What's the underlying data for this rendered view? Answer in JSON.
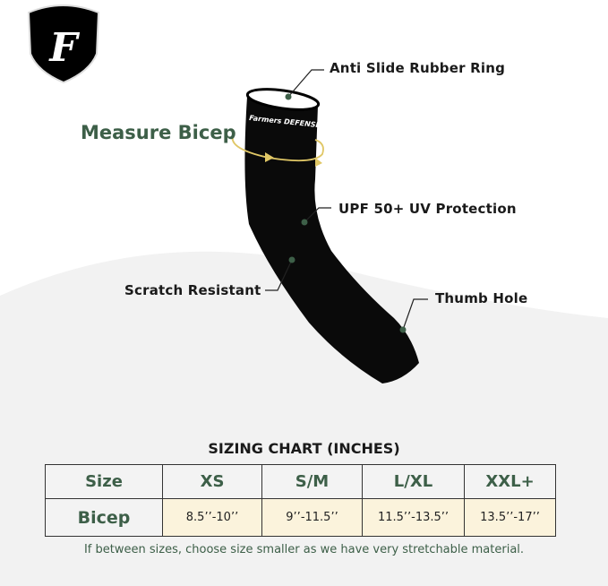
{
  "brand": {
    "logo_text": "F",
    "sleeve_text": "Farmers DEFENSE"
  },
  "colors": {
    "accent_green": "#3d5f48",
    "highlight_cream": "#fbf3dc",
    "arrow_gold": "#e0c766",
    "background_gray": "#f2f2f2"
  },
  "callouts": {
    "measure": "Measure Bicep",
    "ring": "Anti Slide Rubber Ring",
    "upf": "UPF 50+ UV Protection",
    "scratch": "Scratch Resistant",
    "thumb": "Thumb Hole"
  },
  "sizing": {
    "title": "SIZING CHART (INCHES)",
    "header": [
      "Size",
      "XS",
      "S/M",
      "L/XL",
      "XXL+"
    ],
    "row": [
      "Bicep",
      "8.5’’-10’’",
      "9’’-11.5’’",
      "11.5’’-13.5’’",
      "13.5’’-17’’"
    ],
    "note": "If between sizes, choose size smaller as we have very stretchable material."
  }
}
